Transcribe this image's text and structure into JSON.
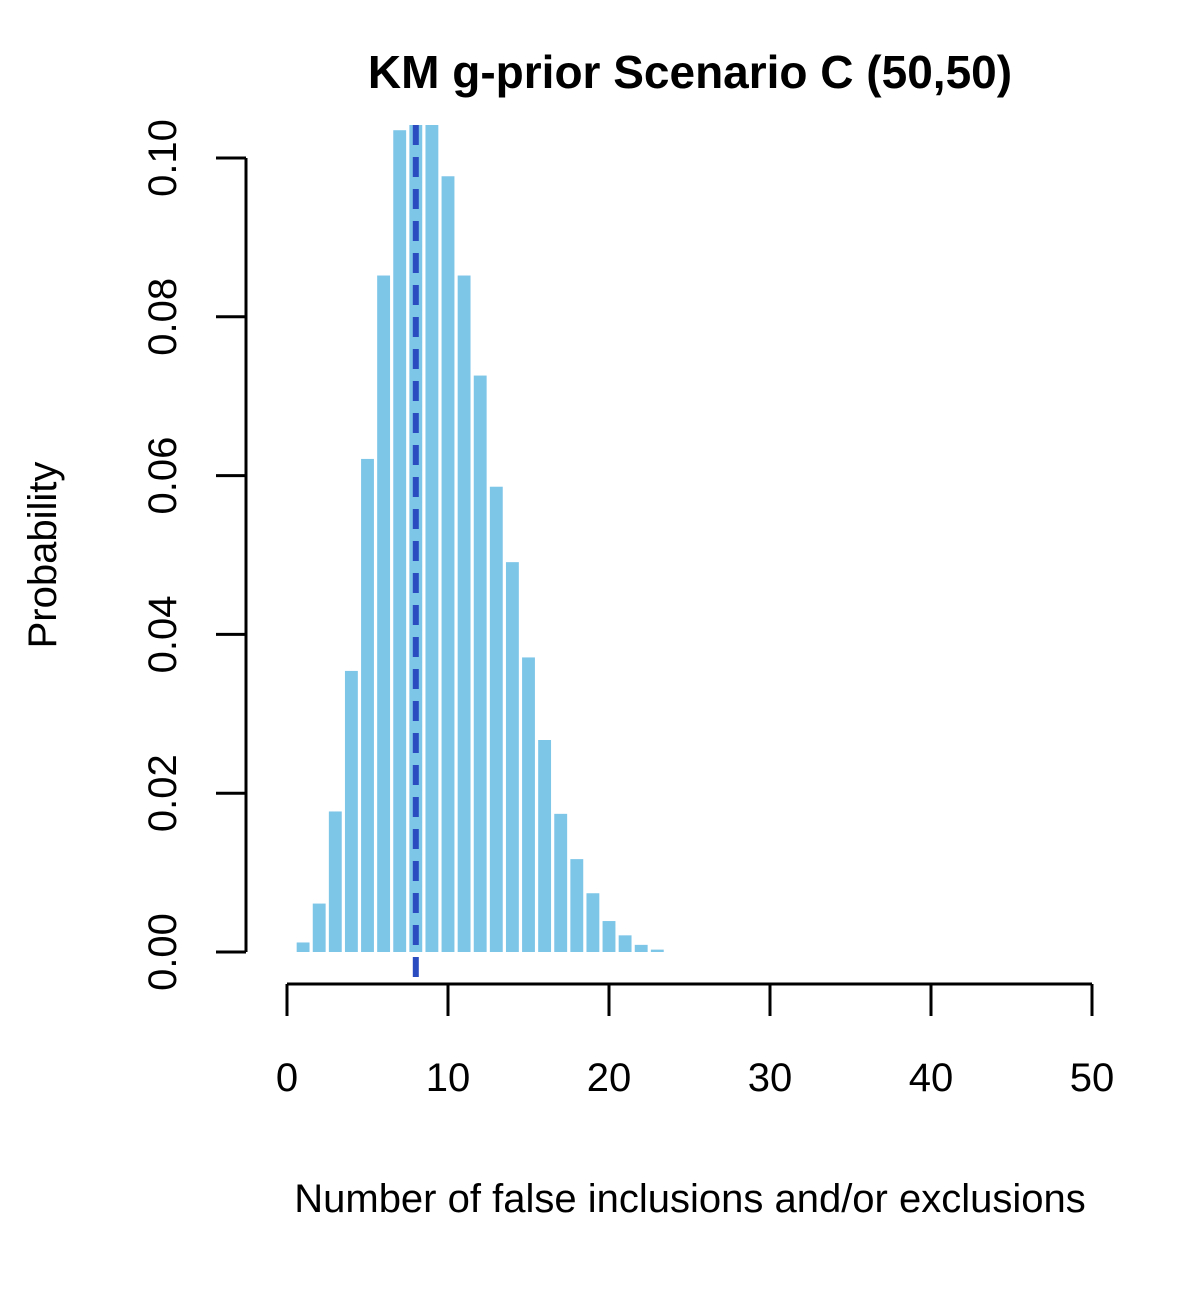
{
  "chart_data": {
    "type": "bar",
    "title": "KM g-prior Scenario C (50,50)",
    "xlabel": "Number of false inclusions and/or exclusions",
    "ylabel": "Probability",
    "xlim": [
      0,
      50
    ],
    "ylim": [
      0,
      0.1
    ],
    "x_ticks": [
      0,
      10,
      20,
      30,
      40,
      50
    ],
    "x_tick_labels": [
      "0",
      "10",
      "20",
      "30",
      "40",
      "50"
    ],
    "y_ticks": [
      0,
      0.02,
      0.04,
      0.06,
      0.08,
      0.1
    ],
    "y_tick_labels": [
      "0.00",
      "0.02",
      "0.04",
      "0.06",
      "0.08",
      "0.10"
    ],
    "bar_color": "#7ec6e8",
    "reference_line": {
      "x": 8,
      "style": "dashed",
      "color": "#2b4bc0"
    },
    "x": [
      1,
      2,
      3,
      4,
      5,
      6,
      7,
      8,
      9,
      10,
      11,
      12,
      13,
      14,
      15,
      16,
      17,
      18,
      19,
      20,
      21,
      22,
      23
    ],
    "values": [
      0.0012,
      0.0061,
      0.0177,
      0.0354,
      0.0621,
      0.0852,
      0.1035,
      0.106,
      0.105,
      0.0977,
      0.0852,
      0.0726,
      0.0586,
      0.0491,
      0.0371,
      0.0267,
      0.0174,
      0.0117,
      0.0074,
      0.0039,
      0.0021,
      0.0009,
      0.0003
    ]
  }
}
